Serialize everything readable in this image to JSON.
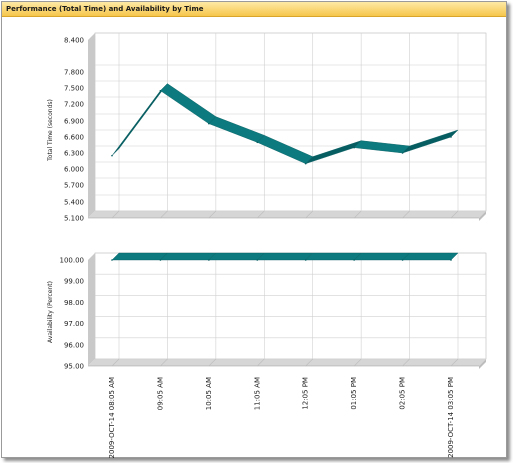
{
  "panel": {
    "title": "Performance (Total Time) and Availability by Time"
  },
  "colors": {
    "band": "#0c7a7e",
    "band_dark": "#075e62",
    "wall": "#c9c9c9",
    "floor": "#d6d6d6",
    "grid": "#d0d0d0",
    "title_bg": "#f6c64b"
  },
  "chart_data": [
    {
      "type": "area",
      "title": "",
      "xlabel": "",
      "ylabel": "Total Time (seconds)",
      "ylim": [
        5.1,
        8.4
      ],
      "y_ticks": [
        "8.400",
        "7.800",
        "7.500",
        "7.200",
        "6.900",
        "6.600",
        "6.300",
        "6.000",
        "5.700",
        "5.400",
        "5.100"
      ],
      "categories": [
        "2009-OCT-14 08:05 AM",
        "09:05 AM",
        "10:05 AM",
        "11:05 AM",
        "12:05 PM",
        "01:05 PM",
        "02:05 PM",
        "2009-OCT-14 03:05 PM"
      ],
      "series": [
        {
          "values": [
            6.25,
            7.45,
            6.85,
            6.5,
            6.1,
            6.4,
            6.3,
            6.6
          ]
        }
      ],
      "grid": true
    },
    {
      "type": "area",
      "title": "",
      "xlabel": "",
      "ylabel": "Availability (Percent)",
      "ylim": [
        95,
        100
      ],
      "y_ticks": [
        "100.00",
        "99.00",
        "98.00",
        "97.00",
        "96.00",
        "95.00"
      ],
      "categories": [
        "2009-OCT-14 08:05 AM",
        "09:05 AM",
        "10:05 AM",
        "11:05 AM",
        "12:05 PM",
        "01:05 PM",
        "02:05 PM",
        "2009-OCT-14 03:05 PM"
      ],
      "series": [
        {
          "values": [
            100,
            100,
            100,
            100,
            100,
            100,
            100,
            100
          ]
        }
      ],
      "grid": true
    }
  ]
}
